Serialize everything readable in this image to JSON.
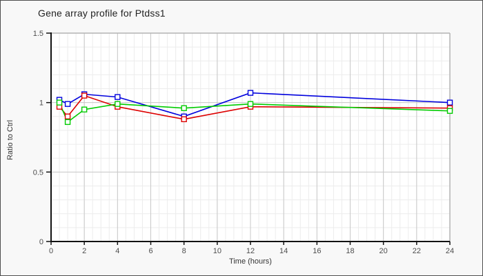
{
  "window": {
    "background": "#f8f8f8",
    "border_color": "#4d4d4d"
  },
  "chart_data": {
    "type": "line",
    "title": "Gene array profile for Ptdss1",
    "xlabel": "Time (hours)",
    "ylabel": "Ratio to Ctrl",
    "x": [
      0.5,
      1,
      2,
      4,
      8,
      12,
      24
    ],
    "series": [
      {
        "name": "blue",
        "color": "#0000dd",
        "values": [
          1.02,
          0.99,
          1.06,
          1.04,
          0.9,
          1.07,
          1.0
        ]
      },
      {
        "name": "red",
        "color": "#dd0000",
        "values": [
          0.97,
          0.9,
          1.05,
          0.97,
          0.88,
          0.97,
          0.96
        ]
      },
      {
        "name": "green",
        "color": "#00cc00",
        "values": [
          1.0,
          0.86,
          0.95,
          0.99,
          0.96,
          0.99,
          0.94
        ]
      }
    ],
    "xlim": [
      0,
      24
    ],
    "ylim": [
      0,
      1.5
    ],
    "x_ticks": [
      0,
      2,
      4,
      6,
      8,
      10,
      12,
      14,
      16,
      18,
      20,
      22,
      24
    ],
    "y_ticks": [
      0,
      0.5,
      1,
      1.5
    ],
    "x_minor_step": 0.5,
    "y_minor_step": 0.1,
    "grid": true,
    "legend": "none",
    "marker": "open-square"
  },
  "styles": {
    "plot_bg": "#ffffff",
    "grid_minor": "#ececec",
    "grid_major": "#c8c8c8",
    "axis_color": "#111111",
    "plot_border": "#b3b3b3",
    "tick_label_color": "#4d4d4d",
    "title_color": "#222222"
  }
}
